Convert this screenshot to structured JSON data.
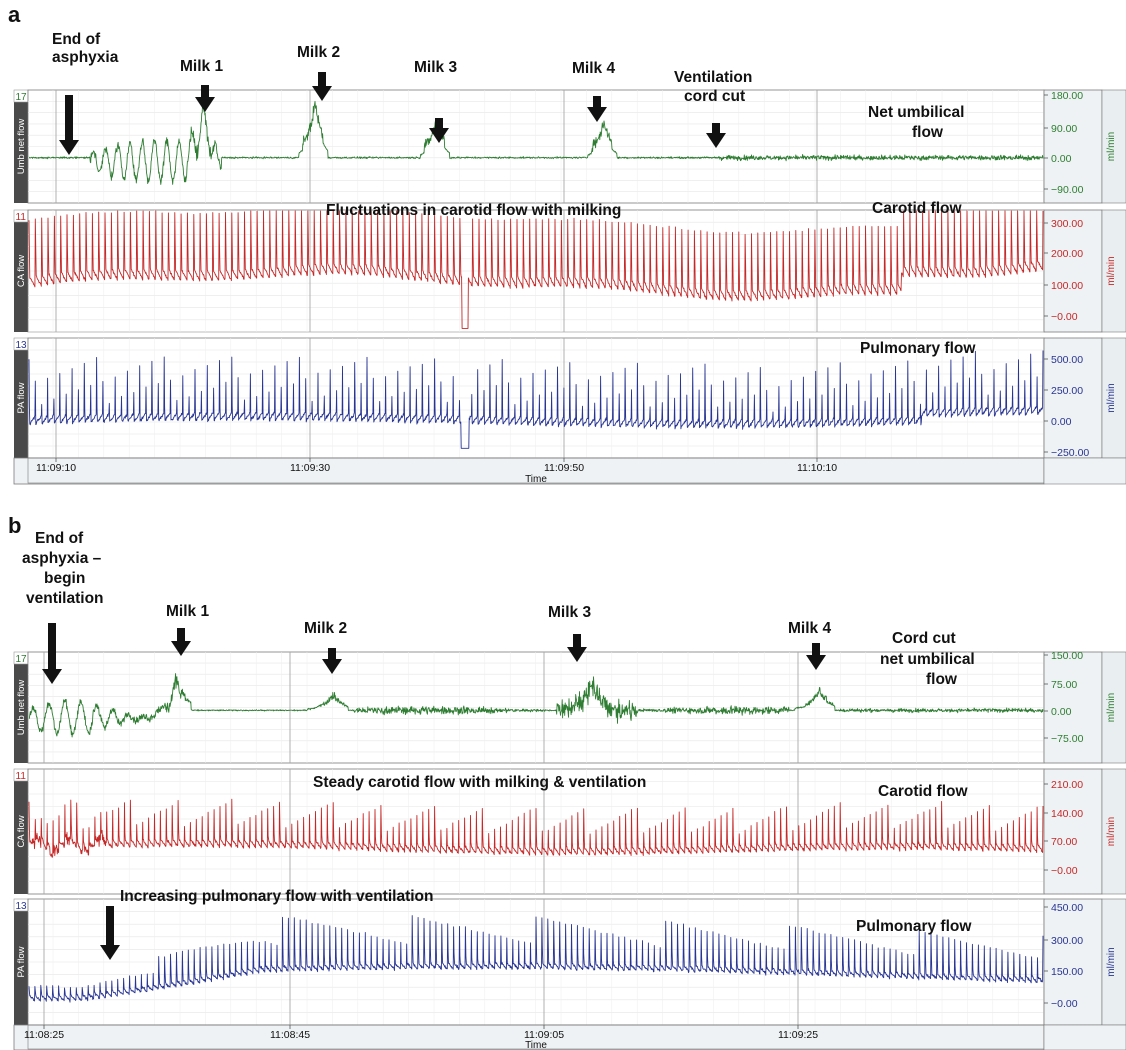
{
  "colors": {
    "umb": "#2e7d32",
    "ca": "#c62828",
    "pa": "#283593",
    "arrow": "#111111",
    "grid": "#bdbdbd",
    "frame": "#7a7a7a",
    "axisbg": "#eef2f4",
    "sidelabel": "#4a4a4a"
  },
  "panels": [
    {
      "letter": "a",
      "time_ticks": [
        "11:09:10",
        "11:09:30",
        "11:09:50",
        "11:10:10"
      ],
      "time_label": "Time",
      "chart_data": [
        {
          "type": "line",
          "channel": "17",
          "ylabel": "Umb net flow",
          "unit": "ml/min",
          "ticks": [
            "180.00",
            "90.00",
            "0.00",
            "−90.00"
          ],
          "ylim": [
            -135,
            190
          ],
          "title": "Net umbilical flow",
          "events": [
            {
              "label": "End of asphyxia",
              "t": 0.04
            },
            {
              "label": "Milk 1",
              "t": 0.175
            },
            {
              "label": "Milk 2",
              "t": 0.29
            },
            {
              "label": "Milk 3",
              "t": 0.405
            },
            {
              "label": "Milk 4",
              "t": 0.565
            },
            {
              "label": "Ventilation cord cut",
              "t": 0.675
            }
          ]
        },
        {
          "type": "line",
          "channel": "11",
          "ylabel": "CA flow",
          "unit": "ml/min",
          "ticks": [
            "300.00",
            "200.00",
            "100.00",
            "−0.00"
          ],
          "ylim": [
            -60,
            330
          ],
          "title": "Carotid flow",
          "annotation": "Fluctuations in carotid flow with milking"
        },
        {
          "type": "line",
          "channel": "13",
          "ylabel": "PA flow",
          "unit": "ml/min",
          "ticks": [
            "500.00",
            "250.00",
            "0.00",
            "−250.00"
          ],
          "ylim": [
            -300,
            580
          ],
          "title": "Pulmonary flow"
        }
      ]
    },
    {
      "letter": "b",
      "time_ticks": [
        "11:08:25",
        "11:08:45",
        "11:09:05",
        "11:09:25"
      ],
      "time_label": "Time",
      "chart_data": [
        {
          "type": "line",
          "channel": "17",
          "ylabel": "Umb net flow",
          "unit": "ml/min",
          "ticks": [
            "150.00",
            "75.00",
            "0.00",
            "−75.00"
          ],
          "ylim": [
            -110,
            160
          ],
          "title": "Cord cut net umbilical flow",
          "events": [
            {
              "label": "End of asphyxia – begin ventilation",
              "t": 0.02
            },
            {
              "label": "Milk 1",
              "t": 0.15
            },
            {
              "label": "Milk 2",
              "t": 0.3
            },
            {
              "label": "Milk 3",
              "t": 0.54
            },
            {
              "label": "Milk 4",
              "t": 0.775
            }
          ]
        },
        {
          "type": "line",
          "channel": "11",
          "ylabel": "CA flow",
          "unit": "ml/min",
          "ticks": [
            "210.00",
            "140.00",
            "70.00",
            "−0.00"
          ],
          "ylim": [
            -35,
            230
          ],
          "title": "Carotid flow",
          "annotation": "Steady carotid flow with milking & ventilation"
        },
        {
          "type": "line",
          "channel": "13",
          "ylabel": "PA flow",
          "unit": "ml/min",
          "ticks": [
            "450.00",
            "300.00",
            "150.00",
            "−0.00"
          ],
          "ylim": [
            -90,
            490
          ],
          "title": "Pulmonary flow",
          "annotation": "Increasing pulmonary flow with ventilation",
          "annotation_t": 0.08
        }
      ]
    }
  ],
  "text": {
    "a_end_1": "End of",
    "a_end_2": "asphyxia",
    "a_milk1": "Milk 1",
    "a_milk2": "Milk 2",
    "a_milk3": "Milk 3",
    "a_milk4": "Milk 4",
    "a_vent_1": "Ventilation",
    "a_vent_2": "cord cut",
    "a_umb_1": "Net umbilical",
    "a_umb_2": "flow",
    "a_ca_ann": "Fluctuations in carotid flow with milking",
    "a_ca_title": "Carotid flow",
    "a_pa_title": "Pulmonary flow",
    "b_end_1": "End of",
    "b_end_2": "asphyxia –",
    "b_end_3": "begin",
    "b_end_4": "ventilation",
    "b_milk1": "Milk 1",
    "b_milk2": "Milk 2",
    "b_milk3": "Milk 3",
    "b_milk4": "Milk 4",
    "b_umb_1": "Cord cut",
    "b_umb_2": "net umbilical",
    "b_umb_3": "flow",
    "b_ca_ann": "Steady carotid flow with milking & ventilation",
    "b_ca_title": "Carotid flow",
    "b_pa_ann": "Increasing pulmonary flow with ventilation",
    "b_pa_title": "Pulmonary flow"
  }
}
